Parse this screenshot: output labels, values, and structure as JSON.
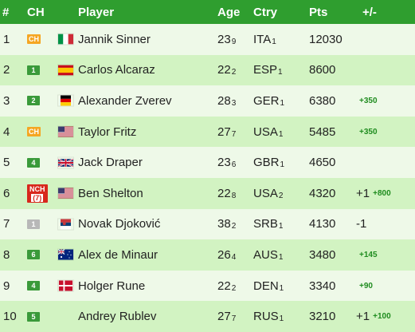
{
  "headers": {
    "rank": "#",
    "ch": "CH",
    "player": "Player",
    "age": "Age",
    "ctry": "Ctry",
    "pts": "Pts",
    "pm": "+/-"
  },
  "row_colors": {
    "light": "#eef9e8",
    "medium": "#d2f3c2",
    "accent": "#2f9e2f"
  },
  "rows": [
    {
      "rank": "1",
      "ch": "CH",
      "ch_type": "ch",
      "flag": "italy-flag",
      "player": "Jannik Sinner",
      "age_main": "23",
      "age_sub": "9",
      "ctry_main": "ITA",
      "ctry_sub": "1",
      "pts": "12030",
      "move": "",
      "delta": "",
      "bg": "light"
    },
    {
      "rank": "2",
      "ch": "1",
      "ch_type": "green",
      "flag": "spain-flag",
      "player": "Carlos Alcaraz",
      "age_main": "22",
      "age_sub": "2",
      "ctry_main": "ESP",
      "ctry_sub": "1",
      "pts": "8600",
      "move": "",
      "delta": "",
      "bg": "medium"
    },
    {
      "rank": "3",
      "ch": "2",
      "ch_type": "green",
      "flag": "germany-flag",
      "player": "Alexander Zverev",
      "age_main": "28",
      "age_sub": "3",
      "ctry_main": "GER",
      "ctry_sub": "1",
      "pts": "6380",
      "move": "",
      "delta": "+350",
      "bg": "light"
    },
    {
      "rank": "4",
      "ch": "CH",
      "ch_type": "ch",
      "flag": "usa-flag",
      "player": "Taylor Fritz",
      "age_main": "27",
      "age_sub": "7",
      "ctry_main": "USA",
      "ctry_sub": "1",
      "pts": "5485",
      "move": "",
      "delta": "+350",
      "bg": "medium"
    },
    {
      "rank": "5",
      "ch": "4",
      "ch_type": "green",
      "flag": "uk-flag",
      "player": "Jack Draper",
      "age_main": "23",
      "age_sub": "6",
      "ctry_main": "GBR",
      "ctry_sub": "1",
      "pts": "4650",
      "move": "",
      "delta": "",
      "bg": "light"
    },
    {
      "rank": "6",
      "ch": "NCH",
      "ch_num": "(7)",
      "ch_type": "nch",
      "flag": "usa-flag",
      "player": "Ben Shelton",
      "age_main": "22",
      "age_sub": "8",
      "ctry_main": "USA",
      "ctry_sub": "2",
      "pts": "4320",
      "move": "+1",
      "delta": "+800",
      "bg": "medium"
    },
    {
      "rank": "7",
      "ch": "1",
      "ch_type": "grey",
      "flag": "serbia-flag",
      "player": "Novak Djoković",
      "age_main": "38",
      "age_sub": "2",
      "ctry_main": "SRB",
      "ctry_sub": "1",
      "pts": "4130",
      "move": "-1",
      "delta": "",
      "bg": "light"
    },
    {
      "rank": "8",
      "ch": "6",
      "ch_type": "green",
      "flag": "australia-flag",
      "player": "Alex de Minaur",
      "age_main": "26",
      "age_sub": "4",
      "ctry_main": "AUS",
      "ctry_sub": "1",
      "pts": "3480",
      "move": "",
      "delta": "+145",
      "bg": "medium"
    },
    {
      "rank": "9",
      "ch": "4",
      "ch_type": "green",
      "flag": "denmark-flag",
      "player": "Holger Rune",
      "age_main": "22",
      "age_sub": "2",
      "ctry_main": "DEN",
      "ctry_sub": "1",
      "pts": "3340",
      "move": "",
      "delta": "+90",
      "bg": "light"
    },
    {
      "rank": "10",
      "ch": "5",
      "ch_type": "green",
      "flag": "",
      "player": "Andrey Rublev",
      "age_main": "27",
      "age_sub": "7",
      "ctry_main": "RUS",
      "ctry_sub": "1",
      "pts": "3210",
      "move": "+1",
      "delta": "+100",
      "bg": "medium"
    }
  ]
}
